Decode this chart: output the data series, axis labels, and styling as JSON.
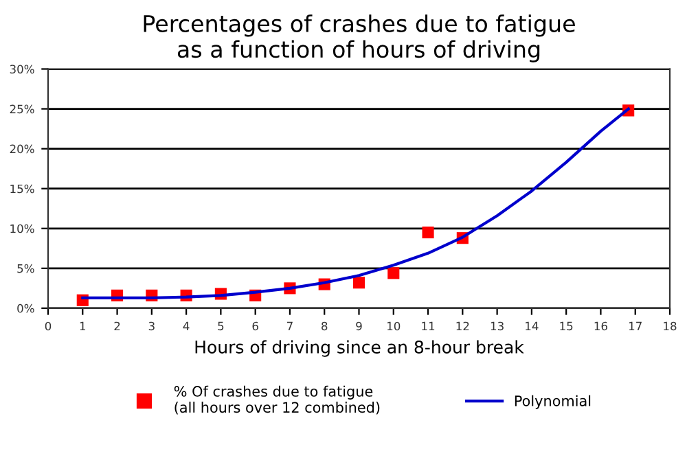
{
  "chart_data": {
    "type": "scatter",
    "title": "Percentages of crashes due to fatigue\nas a function of hours of driving",
    "xlabel": "Hours of driving since an 8-hour break",
    "xlim": [
      0,
      18
    ],
    "xticks": [
      0,
      1,
      2,
      3,
      4,
      5,
      6,
      7,
      8,
      9,
      10,
      11,
      12,
      13,
      14,
      15,
      16,
      17,
      18
    ],
    "ylim": [
      0,
      30
    ],
    "yticks": [
      {
        "value": 0,
        "label": "0%"
      },
      {
        "value": 5,
        "label": "5%"
      },
      {
        "value": 10,
        "label": "10%"
      },
      {
        "value": 15,
        "label": "15%"
      },
      {
        "value": 20,
        "label": "20%"
      },
      {
        "value": 25,
        "label": "25%"
      },
      {
        "value": 30,
        "label": "30%"
      }
    ],
    "grid": "y",
    "legend": "bottom",
    "series": [
      {
        "name": "% Of crashes due to fatigue\n(all hours over 12 combined)",
        "marker": "square",
        "color": "#ff0000",
        "x": [
          1,
          2,
          3,
          4,
          5,
          6,
          7,
          8,
          9,
          10,
          11,
          12,
          16.8
        ],
        "values": [
          1.0,
          1.6,
          1.6,
          1.6,
          1.8,
          1.6,
          2.5,
          3.0,
          3.2,
          4.4,
          9.5,
          8.8,
          24.8
        ]
      },
      {
        "name": "Polynomial",
        "type": "line",
        "marker": "none",
        "line_style": "solid",
        "color": "#0000cc",
        "x": [
          1,
          2,
          3,
          4,
          5,
          6,
          7,
          8,
          9,
          10,
          11,
          12,
          13,
          14,
          15,
          16,
          16.8
        ],
        "values": [
          1.3,
          1.3,
          1.3,
          1.4,
          1.6,
          2.0,
          2.5,
          3.2,
          4.1,
          5.4,
          6.9,
          8.9,
          11.6,
          14.7,
          18.3,
          22.2,
          25.0
        ]
      }
    ]
  }
}
